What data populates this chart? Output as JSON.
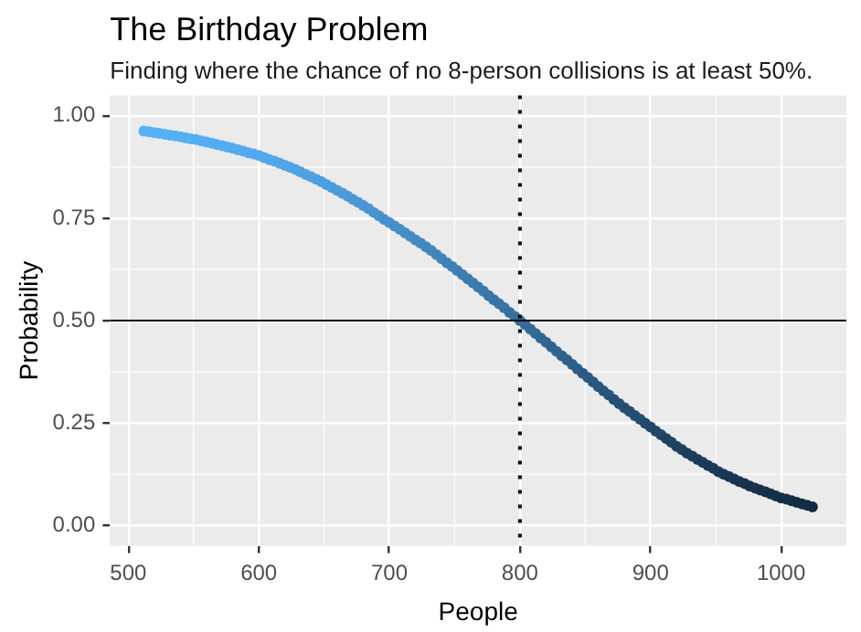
{
  "chart_data": {
    "type": "scatter",
    "title": "The Birthday Problem",
    "subtitle": "Finding where the chance of no 8-person collisions is at least 50%.",
    "xlabel": "People",
    "ylabel": "Probability",
    "x": [
      512,
      516,
      520,
      524,
      528,
      532,
      536,
      540,
      544,
      548,
      552,
      556,
      560,
      564,
      568,
      572,
      576,
      580,
      584,
      588,
      592,
      596,
      600,
      604,
      608,
      612,
      616,
      620,
      624,
      628,
      632,
      636,
      640,
      644,
      648,
      652,
      656,
      660,
      664,
      668,
      672,
      676,
      680,
      684,
      688,
      692,
      696,
      700,
      704,
      708,
      712,
      716,
      720,
      724,
      728,
      732,
      736,
      740,
      744,
      748,
      752,
      756,
      760,
      764,
      768,
      772,
      776,
      780,
      784,
      788,
      792,
      796,
      800,
      804,
      808,
      812,
      816,
      820,
      824,
      828,
      832,
      836,
      840,
      844,
      848,
      852,
      856,
      860,
      864,
      868,
      872,
      876,
      880,
      884,
      888,
      892,
      896,
      900,
      904,
      908,
      912,
      916,
      920,
      924,
      928,
      932,
      936,
      940,
      944,
      948,
      952,
      956,
      960,
      964,
      968,
      972,
      976,
      980,
      984,
      988,
      992,
      996,
      1000,
      1004,
      1008,
      1012,
      1016,
      1020,
      1024
    ],
    "values": [
      0.963,
      0.961,
      0.959,
      0.957,
      0.955,
      0.953,
      0.951,
      0.949,
      0.946,
      0.944,
      0.942,
      0.939,
      0.936,
      0.933,
      0.93,
      0.927,
      0.924,
      0.921,
      0.917,
      0.914,
      0.91,
      0.907,
      0.903,
      0.898,
      0.893,
      0.889,
      0.884,
      0.879,
      0.874,
      0.869,
      0.863,
      0.857,
      0.851,
      0.845,
      0.839,
      0.832,
      0.825,
      0.818,
      0.811,
      0.804,
      0.796,
      0.789,
      0.781,
      0.773,
      0.764,
      0.756,
      0.747,
      0.739,
      0.731,
      0.723,
      0.714,
      0.706,
      0.697,
      0.689,
      0.68,
      0.671,
      0.661,
      0.651,
      0.641,
      0.632,
      0.622,
      0.612,
      0.602,
      0.592,
      0.582,
      0.572,
      0.561,
      0.551,
      0.541,
      0.531,
      0.52,
      0.51,
      0.5,
      0.49,
      0.479,
      0.468,
      0.457,
      0.447,
      0.436,
      0.425,
      0.414,
      0.404,
      0.393,
      0.382,
      0.371,
      0.361,
      0.35,
      0.339,
      0.328,
      0.318,
      0.307,
      0.297,
      0.287,
      0.278,
      0.268,
      0.259,
      0.249,
      0.24,
      0.23,
      0.221,
      0.212,
      0.203,
      0.193,
      0.185,
      0.176,
      0.169,
      0.161,
      0.154,
      0.146,
      0.139,
      0.131,
      0.125,
      0.119,
      0.113,
      0.107,
      0.102,
      0.096,
      0.091,
      0.086,
      0.082,
      0.077,
      0.072,
      0.067,
      0.064,
      0.06,
      0.056,
      0.052,
      0.049,
      0.045
    ],
    "colors": [
      "#56b1f7",
      "#56b1f7",
      "#56b0f6",
      "#56b0f6",
      "#55b0f5",
      "#55b0f5",
      "#55aff5",
      "#55aff5",
      "#55aef4",
      "#55aef4",
      "#54aef3",
      "#54aef3",
      "#54adf2",
      "#54adf2",
      "#54acf0",
      "#54acf0",
      "#53abef",
      "#53abef",
      "#53aaee",
      "#53aaee",
      "#52a9ed",
      "#52a9ed",
      "#52a8eb",
      "#52a8eb",
      "#51a7e9",
      "#51a7e9",
      "#50a5e8",
      "#50a5e8",
      "#4fa4e6",
      "#4fa4e6",
      "#4fa2e3",
      "#4fa2e3",
      "#4ea1e1",
      "#4ea1e1",
      "#4d9fdf",
      "#4d9fdf",
      "#4c9ddc",
      "#4c9ddc",
      "#4b9bd9",
      "#4b9bd9",
      "#4a99d6",
      "#4a99d6",
      "#4996d3",
      "#4996d3",
      "#4794d0",
      "#4794d0",
      "#4691cd",
      "#4691cd",
      "#458fc9",
      "#458fc9",
      "#448dc6",
      "#448dc6",
      "#438ac3",
      "#438ac3",
      "#4188bf",
      "#4188bf",
      "#4085bc",
      "#4085bc",
      "#3f82b8",
      "#3f82b8",
      "#3d7fb4",
      "#3d7fb4",
      "#3c7cb0",
      "#3c7cb0",
      "#3a79ac",
      "#3a79ac",
      "#3976a8",
      "#3976a8",
      "#3773a4",
      "#3773a4",
      "#3670a0",
      "#3670a0",
      "#346d9c",
      "#346d9c",
      "#336a98",
      "#336a98",
      "#316794",
      "#316794",
      "#306490",
      "#306490",
      "#2e618b",
      "#2e618b",
      "#2c5e87",
      "#2c5e87",
      "#2b5b83",
      "#2b5b83",
      "#29587f",
      "#29587f",
      "#28547a",
      "#28547a",
      "#265176",
      "#265176",
      "#254e72",
      "#254e72",
      "#234c6f",
      "#234c6f",
      "#22496b",
      "#22496b",
      "#214667",
      "#214667",
      "#1f4364",
      "#1f4364",
      "#1e4160",
      "#1e4160",
      "#1d3e5d",
      "#1d3e5d",
      "#1b3c5a",
      "#1b3c5a",
      "#1a3a57",
      "#1a3a57",
      "#193854",
      "#193854",
      "#183652",
      "#183652",
      "#18344f",
      "#18344f",
      "#17324d",
      "#17324d",
      "#16314b",
      "#16314b",
      "#153049",
      "#153049",
      "#152e47",
      "#152e47",
      "#142d46",
      "#142d46",
      "#142c44",
      "#142c44",
      "#132b43"
    ],
    "marker": "circle",
    "xlim": [
      486,
      1050
    ],
    "xticks": [
      500,
      600,
      700,
      800,
      900,
      1000
    ],
    "ylim": [
      -0.05,
      1.05
    ],
    "yticks": [
      {
        "value": 0,
        "label": "0.00"
      },
      {
        "value": 0.25,
        "label": "0.25"
      },
      {
        "value": 0.5,
        "label": "0.50"
      },
      {
        "value": 0.75,
        "label": "0.75"
      },
      {
        "value": 1,
        "label": "1.00"
      }
    ],
    "ref_lines": [
      {
        "axis": "x",
        "value": 800,
        "color": "#000000",
        "line_style": "dotted"
      },
      {
        "axis": "y",
        "value": 0.5,
        "color": "#000000"
      }
    ],
    "grid": true,
    "legend": false
  }
}
